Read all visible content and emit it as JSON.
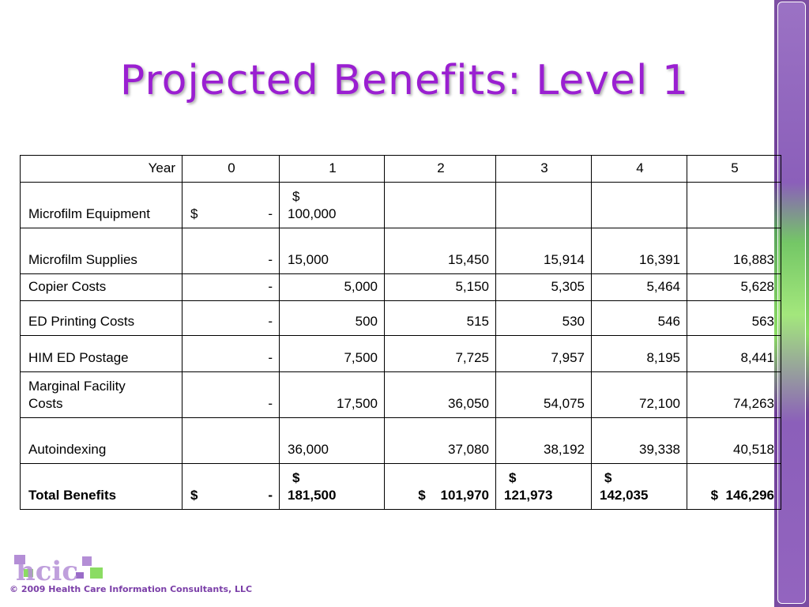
{
  "slide": {
    "title": "Projected Benefits:  Level 1",
    "copyright": "© 2009 Health Care Information Consultants, LLC",
    "logo_text": "hcic"
  },
  "table": {
    "header": [
      "Year",
      "0",
      "1",
      "2",
      "3",
      "4",
      "5"
    ],
    "rows": [
      {
        "label": "Microfilm Equipment",
        "y0_sym": "$",
        "y0_val": "-",
        "y1_sym": "$",
        "y1_val": "100,000",
        "y2": "",
        "y3": "",
        "y4": "",
        "y5": ""
      },
      {
        "label": "Microfilm Supplies",
        "y0": "-",
        "y1": "15,000",
        "y2": "15,450",
        "y3": "15,914",
        "y4": "16,391",
        "y5": "16,883"
      },
      {
        "label": "Copier Costs",
        "y0": "-",
        "y1": "5,000",
        "y2": "5,150",
        "y3": "5,305",
        "y4": "5,464",
        "y5": "5,628"
      },
      {
        "label": "ED Printing Costs",
        "y0": "-",
        "y1": "500",
        "y2": "515",
        "y3": "530",
        "y4": "546",
        "y5": "563"
      },
      {
        "label": "HIM ED Postage",
        "y0": "-",
        "y1": "7,500",
        "y2": "7,725",
        "y3": "7,957",
        "y4": "8,195",
        "y5": "8,441"
      },
      {
        "label_line1": "Marginal Facility",
        "label_line2": "Costs",
        "y0": "-",
        "y1": "17,500",
        "y2": "36,050",
        "y3": "54,075",
        "y4": "72,100",
        "y5": "74,263"
      },
      {
        "label": "Autoindexing",
        "y0": "",
        "y1": "36,000",
        "y2": "37,080",
        "y3": "38,192",
        "y4": "39,338",
        "y5": "40,518"
      }
    ],
    "total": {
      "label": "Total Benefits",
      "y0_sym": "$",
      "y0_val": "-",
      "y1_sym": "$",
      "y1_val": "181,500",
      "y2": "$    101,970",
      "y3_sym": "$",
      "y3_val": "121,973",
      "y4_sym": "$",
      "y4_val": "142,035",
      "y5": "$  146,296"
    }
  },
  "colors": {
    "title": "#9a1fd1",
    "sidebar_purple": "#7d4fa3",
    "sidebar_green": "#8bdc63",
    "copyright": "#7b3fa8"
  }
}
